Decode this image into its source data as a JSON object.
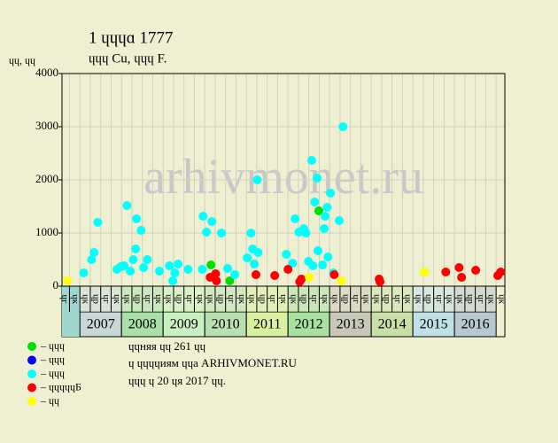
{
  "chart_data": {
    "type": "scatter",
    "title": "1 ɥɥɥɑ 1777",
    "subtitle": "ɥɥɥ Cu, ɥɥɥ F.",
    "y_label": "ɥɥ, ɥɥ",
    "watermark": "arhivmonet.ru",
    "xlim": [
      2006.57,
      2017.21
    ],
    "xticks": [
      2007,
      2008,
      2009,
      2010,
      2011,
      2012,
      2013,
      2014,
      2015,
      2016
    ],
    "year_colors": [
      "#c8d8d8",
      "#a8e0a8",
      "#c8f0c0",
      "#b8e0b0",
      "#d8f0a0",
      "#a8e0a0",
      "#c8c8b8",
      "#c8e0a8",
      "#c0e0e8",
      "#b8c8d0"
    ],
    "quarter_names": [
      "ɥк",
      "ɥр",
      "ɥг",
      "ɥк"
    ],
    "ylim": [
      0,
      4000
    ],
    "yticks": [
      0,
      1000,
      2000,
      3000,
      4000
    ],
    "grid": true,
    "series": [
      {
        "name": "ɥɥɥ",
        "color": "#00e000",
        "x": [
          2010.15,
          2010.6,
          2012.74
        ],
        "values": [
          400,
          100,
          1417
        ]
      },
      {
        "name": "ɥɥɥ",
        "color": "#0000ff",
        "x": [],
        "values": []
      },
      {
        "name": "ɥɥɥ",
        "color": "#00ffff",
        "x": [
          2007.09,
          2007.28,
          2007.34,
          2007.43,
          2007.89,
          2007.98,
          2008.06,
          2008.13,
          2008.21,
          2008.28,
          2008.34,
          2008.36,
          2008.47,
          2008.53,
          2008.62,
          2008.91,
          2009.15,
          2009.23,
          2009.28,
          2009.36,
          2009.6,
          2009.94,
          2009.96,
          2010.04,
          2010.17,
          2010.4,
          2010.55,
          2010.72,
          2011.02,
          2011.11,
          2011.15,
          2011.19,
          2011.26,
          2011.28,
          2011.96,
          2012.11,
          2012.17,
          2012.26,
          2012.38,
          2012.43,
          2012.49,
          2012.57,
          2012.6,
          2012.64,
          2012.7,
          2012.72,
          2012.83,
          2012.87,
          2012.89,
          2012.94,
          2012.96,
          2013.02,
          2013.09,
          2013.23,
          2013.32
        ],
        "values": [
          250,
          500,
          633,
          1200,
          317,
          367,
          383,
          1517,
          283,
          500,
          700,
          1267,
          1050,
          350,
          500,
          283,
          383,
          100,
          250,
          417,
          317,
          317,
          1317,
          1017,
          1217,
          1000,
          333,
          217,
          533,
          1000,
          700,
          417,
          2000,
          633,
          600,
          433,
          1267,
          1017,
          1083,
          1000,
          467,
          2367,
          383,
          1583,
          2033,
          667,
          400,
          1083,
          1317,
          1483,
          550,
          1750,
          250,
          1233,
          3000
        ]
      },
      {
        "name": "ɥɥɥɥɥБ",
        "color": "#ff0000",
        "x": [
          2010.13,
          2010.26,
          2010.28,
          2011.23,
          2011.68,
          2012.0,
          2012.28,
          2012.32,
          2013.11,
          2014.19,
          2014.21,
          2015.79,
          2016.11,
          2016.17,
          2016.51,
          2017.04,
          2017.11
        ],
        "values": [
          167,
          233,
          100,
          217,
          200,
          317,
          83,
          133,
          217,
          133,
          83,
          267,
          350,
          167,
          300,
          200,
          267
        ]
      },
      {
        "name": "ɥɥ",
        "color": "#ffff00",
        "x": [
          2006.7,
          2012.51,
          2013.28,
          2015.28
        ],
        "values": [
          100,
          167,
          100,
          267
        ]
      }
    ],
    "footer": [
      "ɥɥняя ɥɥ 261 ɥɥ",
      "ɥ ɥɥɥɥиям ɥɥа ARHIVMONET.RU",
      "ɥɥɥ ɥ 20 ɥя 2017 ɥɥ."
    ]
  }
}
